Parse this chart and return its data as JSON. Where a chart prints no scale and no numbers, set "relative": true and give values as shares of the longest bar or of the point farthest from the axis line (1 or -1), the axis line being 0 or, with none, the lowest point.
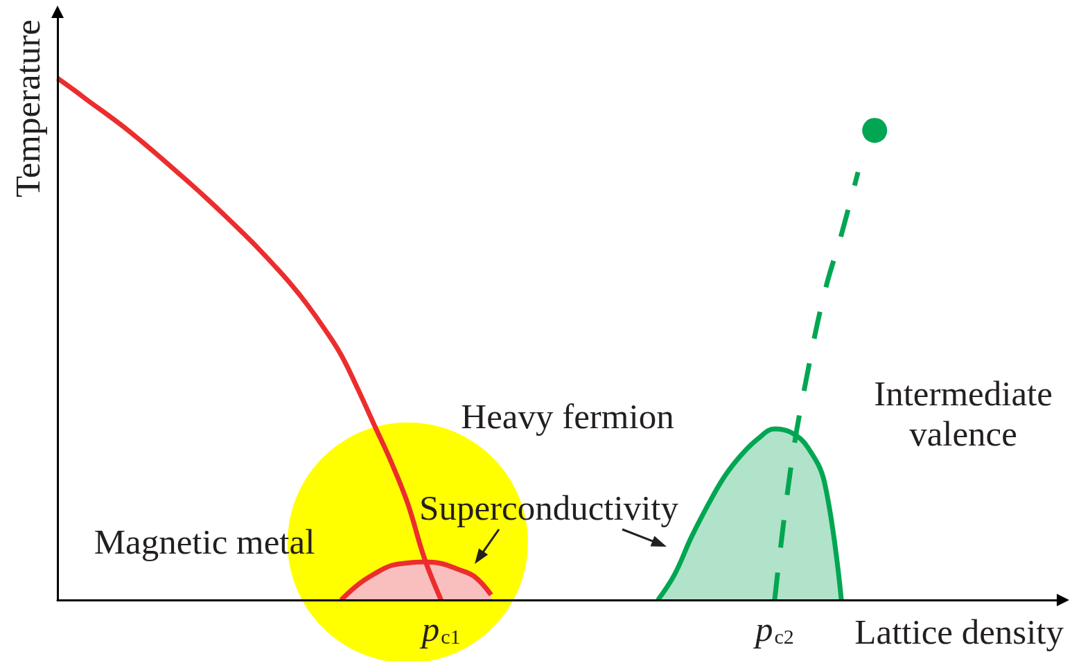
{
  "chart_data": {
    "type": "line",
    "xlabel": "Lattice density",
    "ylabel": "Temperature",
    "relative": true,
    "categories": [
      null,
      null,
      null,
      null,
      null,
      null,
      null,
      null,
      null,
      null,
      null,
      null,
      null,
      null,
      null,
      null,
      null,
      null,
      null,
      null,
      null,
      null,
      null,
      "p$_{c1}$",
      null,
      null,
      null,
      null,
      null,
      null,
      null,
      null,
      null,
      null,
      null,
      null,
      null,
      null,
      null,
      null,
      null,
      null,
      null,
      "p$_{c2}$",
      null,
      null,
      null,
      null,
      null,
      null,
      null,
      null,
      null,
      null,
      null,
      null,
      null,
      null,
      null,
      null,
      null
    ],
    "series": [
      {
        "type": "bubble",
        "color": "#ffff00",
        "values": [
          null,
          null,
          null,
          null,
          null,
          null,
          null,
          null,
          null,
          null,
          null,
          null,
          null,
          null,
          null,
          null,
          null,
          null,
          null,
          null,
          null,
          0.11,
          null,
          null,
          null,
          null,
          null,
          null,
          null,
          null,
          null,
          null,
          null,
          null,
          null,
          null,
          null,
          null,
          null,
          null,
          null,
          null,
          null,
          null,
          null,
          null,
          null,
          null,
          null,
          null,
          null,
          null,
          null,
          null,
          null,
          null,
          null,
          null,
          null,
          null,
          null
        ],
        "sizes": [
          null,
          null,
          null,
          null,
          null,
          null,
          null,
          null,
          null,
          null,
          null,
          null,
          null,
          null,
          null,
          null,
          null,
          null,
          null,
          null,
          null,
          1,
          null,
          null,
          null,
          null,
          null,
          null,
          null,
          null,
          null,
          null,
          null,
          null,
          null,
          null,
          null,
          null,
          null,
          null,
          null,
          null,
          null,
          null,
          null,
          null,
          null,
          null,
          null,
          null,
          null,
          null,
          null,
          null,
          null,
          null,
          null,
          null,
          null,
          null,
          null
        ]
      },
      {
        "type": "area",
        "color": "#ec2d2e",
        "values": [
          null,
          null,
          null,
          null,
          null,
          null,
          null,
          null,
          null,
          null,
          null,
          null,
          null,
          null,
          null,
          null,
          null,
          0,
          0.029,
          0.05,
          0.066,
          0.071,
          0.073,
          0.07,
          0.059,
          0.045,
          0.01,
          null,
          null,
          null,
          null,
          null,
          null,
          null,
          null,
          null,
          null,
          null,
          null,
          null,
          null,
          null,
          null,
          null,
          null,
          null,
          null,
          null,
          null,
          null,
          null,
          null,
          null,
          null,
          null,
          null,
          null,
          null,
          null,
          null,
          null
        ]
      },
      {
        "type": "area",
        "color": "#00a651",
        "values": [
          null,
          null,
          null,
          null,
          null,
          null,
          null,
          null,
          null,
          null,
          null,
          null,
          null,
          null,
          null,
          null,
          null,
          null,
          null,
          null,
          null,
          null,
          null,
          null,
          null,
          null,
          null,
          null,
          null,
          null,
          null,
          null,
          null,
          null,
          null,
          null,
          0,
          0.049,
          0.12,
          0.182,
          0.237,
          0.278,
          0.309,
          0.328,
          0.321,
          0.292,
          0.224,
          0,
          null,
          null,
          null,
          null,
          null,
          null,
          null,
          null,
          null,
          null,
          null,
          null,
          null
        ]
      },
      {
        "color": "#ec2d2e",
        "values": [
          1,
          0.977,
          0.953,
          0.93,
          0.906,
          0.88,
          0.853,
          0.825,
          0.797,
          0.768,
          0.738,
          0.707,
          0.675,
          0.641,
          0.605,
          0.565,
          0.52,
          0.47,
          0.405,
          0.335,
          0.265,
          0.185,
          0.08,
          0,
          null,
          null,
          null,
          null,
          null,
          null,
          null,
          null,
          null,
          null,
          null,
          null,
          null,
          null,
          null,
          null,
          null,
          null,
          null,
          null,
          null,
          null,
          null,
          null,
          null,
          null,
          null,
          null,
          null,
          null,
          null,
          null,
          null,
          null,
          null,
          null,
          null
        ]
      },
      {
        "color": "#00a651",
        "line_style": "dashed",
        "values": [
          null,
          null,
          null,
          null,
          null,
          null,
          null,
          null,
          null,
          null,
          null,
          null,
          null,
          null,
          null,
          null,
          null,
          null,
          null,
          null,
          null,
          null,
          null,
          null,
          null,
          null,
          null,
          null,
          null,
          null,
          null,
          null,
          null,
          null,
          null,
          null,
          null,
          null,
          null,
          null,
          null,
          null,
          null,
          0,
          0.26,
          0.44,
          0.59,
          0.7,
          0.82,
          null,
          null,
          null,
          null,
          null,
          null,
          null,
          null,
          null,
          null,
          null,
          null
        ]
      },
      {
        "type": "scatter",
        "color": "#00a651",
        "marker": "circle",
        "values": [
          null,
          null,
          null,
          null,
          null,
          null,
          null,
          null,
          null,
          null,
          null,
          null,
          null,
          null,
          null,
          null,
          null,
          null,
          null,
          null,
          null,
          null,
          null,
          null,
          null,
          null,
          null,
          null,
          null,
          null,
          null,
          null,
          null,
          null,
          null,
          null,
          null,
          null,
          null,
          null,
          null,
          null,
          null,
          null,
          null,
          null,
          null,
          null,
          null,
          0.9,
          null,
          null,
          null,
          null,
          null,
          null,
          null,
          null,
          null,
          null,
          null
        ]
      }
    ],
    "annotations": [
      "Heavy fermion",
      "Magnetic metal",
      "Superconductivity",
      "Intermediate\nvalence"
    ]
  }
}
